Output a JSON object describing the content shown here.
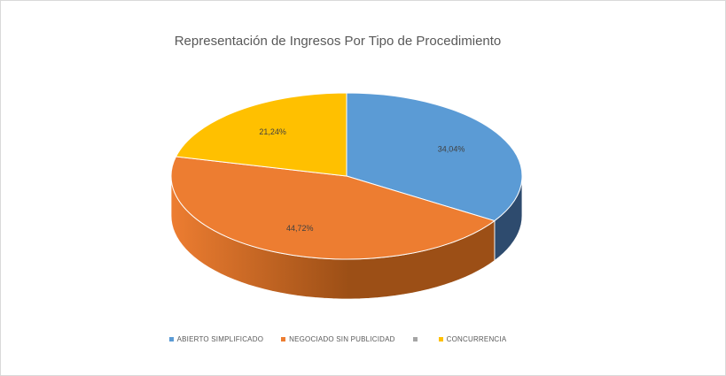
{
  "chart_data": {
    "type": "pie",
    "title": "Representación de Ingresos Por Tipo de Procedimiento",
    "categories": [
      "ABIERTO SIMPLIFICADO",
      "NEGOCIADO SIN PUBLICIDAD",
      "",
      "CONCURRENCIA"
    ],
    "values": [
      34.04,
      44.72,
      0,
      21.24
    ],
    "data_labels": [
      "34,04%",
      "44,72%",
      "",
      "21,24%"
    ],
    "colors": [
      "#5b9bd5",
      "#ed7d31",
      "#a5a5a5",
      "#ffc000"
    ],
    "side_colors": [
      "#2e4b6e",
      "#9c4f16",
      "#6e6e6e",
      "#a67d00"
    ],
    "legend_position": "bottom",
    "style": "3d"
  }
}
